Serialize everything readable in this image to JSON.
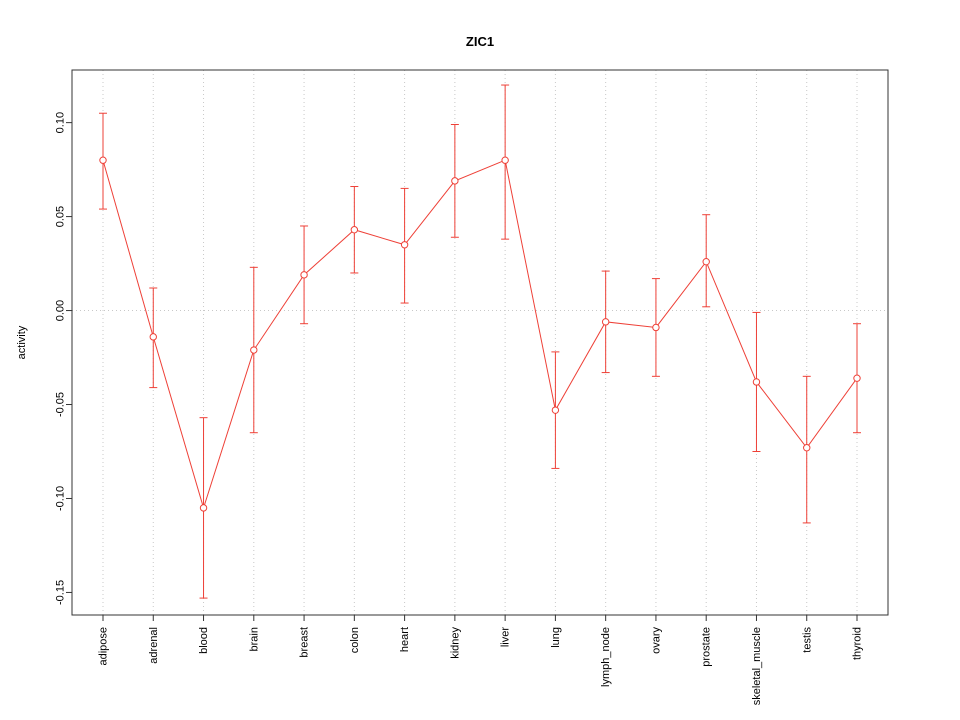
{
  "chart_data": {
    "type": "line",
    "title": "ZIC1",
    "xlabel": "",
    "ylabel": "activity",
    "ylim": [
      -0.162,
      0.128
    ],
    "yticks": [
      -0.15,
      -0.1,
      -0.05,
      0.0,
      0.05,
      0.1
    ],
    "ytick_labels": [
      "-0.15",
      "-0.10",
      "-0.05",
      "0.00",
      "0.05",
      "0.10"
    ],
    "grid": "vertical dotted gridline at each category, horizontal dotted line at 0",
    "legend": "none",
    "categories": [
      "adipose",
      "adrenal",
      "blood",
      "brain",
      "breast",
      "colon",
      "heart",
      "kidney",
      "liver",
      "lung",
      "lymph_node",
      "ovary",
      "prostate",
      "skeletal_muscle",
      "testis",
      "thyroid"
    ],
    "series": [
      {
        "name": "activity",
        "values": [
          0.08,
          -0.014,
          -0.105,
          -0.021,
          0.019,
          0.043,
          0.035,
          0.069,
          0.08,
          -0.053,
          -0.006,
          -0.009,
          0.026,
          -0.038,
          -0.073,
          -0.036
        ],
        "err_low": [
          0.054,
          -0.041,
          -0.153,
          -0.065,
          -0.007,
          0.02,
          0.004,
          0.039,
          0.038,
          -0.084,
          -0.033,
          -0.035,
          0.002,
          -0.075,
          -0.113,
          -0.065
        ],
        "err_high": [
          0.105,
          0.012,
          -0.057,
          0.023,
          0.045,
          0.066,
          0.065,
          0.099,
          0.12,
          -0.022,
          0.021,
          0.017,
          0.051,
          -0.001,
          -0.035,
          -0.007
        ]
      }
    ],
    "colors": {
      "series_line": "#ee4037",
      "marker_fill": "#ffffff",
      "gridline": "#c8c8c8",
      "axis": "#333333",
      "text": "#000000",
      "background": "#ffffff"
    },
    "marker": "open-circle",
    "error_bars": true
  }
}
